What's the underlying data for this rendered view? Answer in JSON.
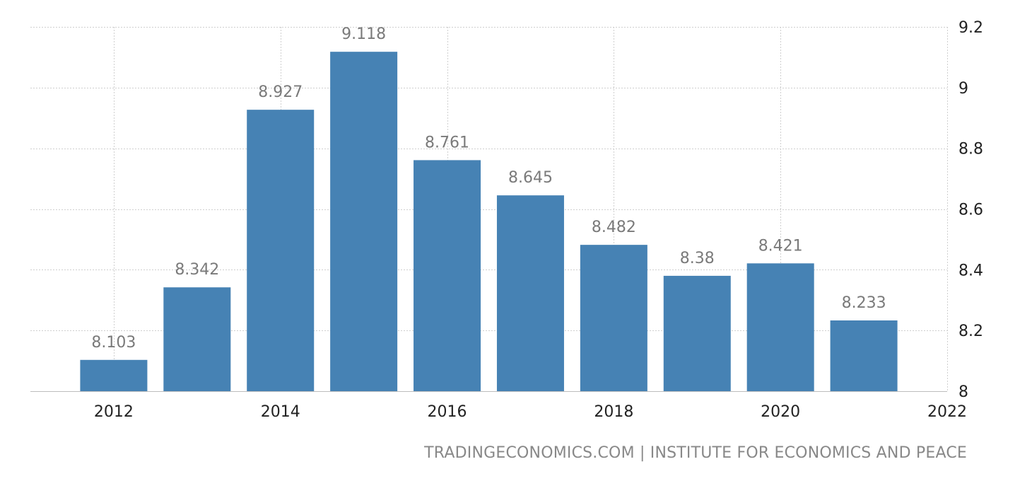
{
  "source": "TRADINGECONOMICS.COM | INSTITUTE FOR ECONOMICS AND PEACE",
  "chart_data": {
    "type": "bar",
    "title": "",
    "xlabel": "",
    "ylabel": "",
    "categories": [
      "2012",
      "2013",
      "2014",
      "2015",
      "2016",
      "2017",
      "2018",
      "2019",
      "2020",
      "2021"
    ],
    "values": [
      8.103,
      8.342,
      8.927,
      9.118,
      8.761,
      8.645,
      8.482,
      8.38,
      8.421,
      8.233
    ],
    "value_labels": [
      "8.103",
      "8.342",
      "8.927",
      "9.118",
      "8.761",
      "8.645",
      "8.482",
      "8.38",
      "8.421",
      "8.233"
    ],
    "ylim": [
      8,
      9.2
    ],
    "y_ticks": [
      8,
      8.2,
      8.4,
      8.6,
      8.8,
      9,
      9.2
    ],
    "y_tick_labels": [
      "8",
      "8.2",
      "8.4",
      "8.6",
      "8.8",
      "9",
      "9.2"
    ],
    "x_ticks": [
      2012,
      2014,
      2016,
      2018,
      2020,
      2022
    ],
    "x_tick_labels": [
      "2012",
      "2014",
      "2016",
      "2018",
      "2020",
      "2022"
    ],
    "xlim": [
      2011,
      2022
    ],
    "y_axis_position": "right",
    "grid": true,
    "legend": "none",
    "bar_color": "#4682b4"
  }
}
